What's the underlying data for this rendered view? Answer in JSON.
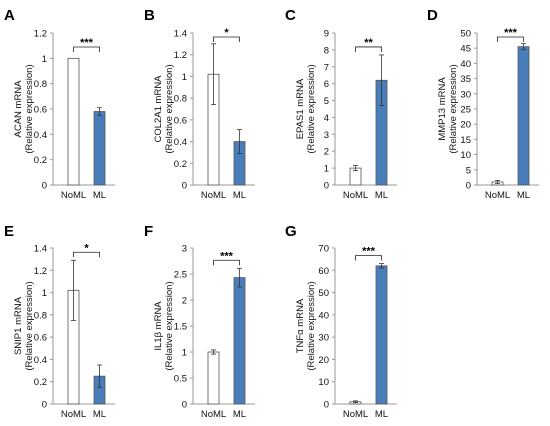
{
  "categories": [
    "NoML",
    "ML"
  ],
  "colors": {
    "control_bar": "#ffffff",
    "ml_bar": "#4a7ebb",
    "edge": "#555555",
    "axis": "#999999"
  },
  "chart_data": [
    {
      "type": "bar",
      "panel": "A",
      "ylabel_line1": "ACAN mRNA",
      "ylabel_line2": "(Relative expression)",
      "categories": [
        "NoML",
        "ML"
      ],
      "values": [
        1.0,
        0.58
      ],
      "errors": [
        0.0,
        0.03
      ],
      "ylim": [
        0,
        1.2
      ],
      "ticks": [
        "0",
        "0.2",
        "0.4",
        "0.6",
        "0.8",
        "1",
        "1.2"
      ],
      "significance": "***"
    },
    {
      "type": "bar",
      "panel": "B",
      "ylabel_line1": "COL2A1 mRNA",
      "ylabel_line2": "(Relative expression)",
      "categories": [
        "NoML",
        "ML"
      ],
      "values": [
        1.02,
        0.4
      ],
      "errors": [
        0.28,
        0.11
      ],
      "ylim": [
        0,
        1.4
      ],
      "ticks": [
        "0",
        "0.2",
        "0.4",
        "0.6",
        "0.8",
        "1",
        "1.2",
        "1.4"
      ],
      "significance": "*"
    },
    {
      "type": "bar",
      "panel": "C",
      "ylabel_line1": "EPAS1 mRNA",
      "ylabel_line2": "(Relative expression)",
      "categories": [
        "NoML",
        "ML"
      ],
      "values": [
        1.0,
        6.2
      ],
      "errors": [
        0.15,
        1.5
      ],
      "ylim": [
        0,
        9
      ],
      "ticks": [
        "0",
        "1",
        "2",
        "3",
        "4",
        "5",
        "6",
        "7",
        "8",
        "9"
      ],
      "significance": "**"
    },
    {
      "type": "bar",
      "panel": "D",
      "ylabel_line1": "MMP13 mRNA",
      "ylabel_line2": "(Relative expression)",
      "categories": [
        "NoML",
        "ML"
      ],
      "values": [
        1.0,
        45.5
      ],
      "errors": [
        0.5,
        1.0
      ],
      "ylim": [
        0,
        50
      ],
      "ticks": [
        "0",
        "5",
        "10",
        "15",
        "20",
        "25",
        "30",
        "35",
        "40",
        "45",
        "50"
      ],
      "significance": "***"
    },
    {
      "type": "bar",
      "panel": "E",
      "ylabel_line1": "SNIP1 mRNA",
      "ylabel_line2": "(Relative expression)",
      "categories": [
        "NoML",
        "ML"
      ],
      "values": [
        1.02,
        0.25
      ],
      "errors": [
        0.27,
        0.1
      ],
      "ylim": [
        0,
        1.4
      ],
      "ticks": [
        "0",
        "0.2",
        "0.4",
        "0.6",
        "0.8",
        "1",
        "1.2",
        "1.4"
      ],
      "significance": "*"
    },
    {
      "type": "bar",
      "panel": "F",
      "ylabel_line1": "IL1β mRNA",
      "ylabel_line2": "(Relative expression)",
      "categories": [
        "NoML",
        "ML"
      ],
      "values": [
        1.0,
        2.43
      ],
      "errors": [
        0.04,
        0.18
      ],
      "ylim": [
        0,
        3
      ],
      "ticks": [
        "0",
        "0.5",
        "1",
        "1.5",
        "2",
        "2.5",
        "3"
      ],
      "significance": "***"
    },
    {
      "type": "bar",
      "panel": "G",
      "ylabel_line1": "TNFα mRNA",
      "ylabel_line2": "(Relative expression)",
      "categories": [
        "NoML",
        "ML"
      ],
      "values": [
        1.0,
        62.0
      ],
      "errors": [
        0.4,
        1.0
      ],
      "ylim": [
        0,
        70
      ],
      "ticks": [
        "0",
        "10",
        "20",
        "30",
        "40",
        "50",
        "60",
        "70"
      ],
      "significance": "***"
    }
  ]
}
